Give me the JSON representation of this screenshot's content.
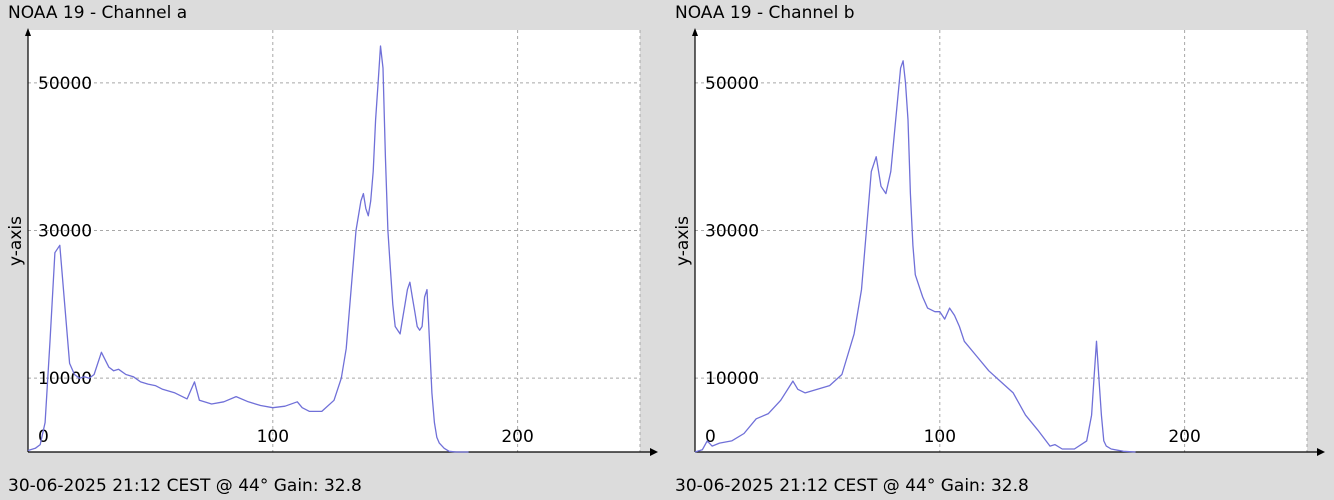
{
  "chart_data": [
    {
      "type": "line",
      "title": "NOAA 19 - Channel a",
      "footer": "30-06-2025 21:12 CEST @ 44° Gain: 32.8",
      "xlabel": "",
      "ylabel": "y-axis",
      "xlim": [
        0,
        250
      ],
      "ylim": [
        0,
        55000
      ],
      "xticks": [
        0,
        100,
        200
      ],
      "xtick_labels": [
        "0",
        "100",
        "200"
      ],
      "yticks": [
        10000,
        30000,
        50000
      ],
      "ytick_labels": [
        "10000",
        "30000",
        "50000"
      ],
      "grid": true,
      "line_color": "#7070d8",
      "series": [
        {
          "x": [
            0,
            3,
            5,
            7,
            9,
            11,
            13,
            15,
            17,
            19,
            21,
            23,
            25,
            27,
            30,
            33,
            35,
            37,
            40,
            43,
            46,
            49,
            52,
            55,
            60,
            65,
            68,
            70,
            72,
            75,
            80,
            85,
            90,
            95,
            100,
            105,
            110,
            112,
            115,
            120,
            125,
            128,
            130,
            132,
            134,
            136,
            137,
            138,
            139,
            140,
            141,
            142,
            143,
            144,
            145,
            146,
            147,
            148,
            149,
            150,
            152,
            153,
            154,
            155,
            156,
            157,
            158,
            159,
            160,
            161,
            162,
            163,
            164,
            165,
            166,
            167,
            168,
            170,
            172,
            175,
            180
          ],
          "y": [
            200,
            500,
            1000,
            4000,
            15000,
            27000,
            28000,
            20000,
            12000,
            10500,
            10000,
            10200,
            10000,
            10500,
            13500,
            11500,
            11000,
            11200,
            10500,
            10200,
            9500,
            9200,
            9000,
            8500,
            8000,
            7200,
            9500,
            7000,
            6800,
            6500,
            6800,
            7500,
            6800,
            6300,
            6000,
            6200,
            6800,
            6000,
            5500,
            5500,
            7000,
            10000,
            14000,
            22000,
            30000,
            34000,
            35000,
            33000,
            32000,
            34000,
            38000,
            45000,
            50000,
            55000,
            52000,
            40000,
            30000,
            25000,
            20000,
            17000,
            16000,
            18000,
            20000,
            22000,
            23000,
            21000,
            19000,
            17000,
            16500,
            17000,
            21000,
            22000,
            15000,
            8000,
            4000,
            2000,
            1200,
            500,
            100,
            0,
            0
          ]
        }
      ]
    },
    {
      "type": "line",
      "title": "NOAA 19 - Channel b",
      "footer": "30-06-2025 21:12 CEST @ 44° Gain: 32.8",
      "xlabel": "",
      "ylabel": "y-axis",
      "xlim": [
        0,
        250
      ],
      "ylim": [
        0,
        55000
      ],
      "xticks": [
        0,
        100,
        200
      ],
      "xtick_labels": [
        "0",
        "100",
        "200"
      ],
      "yticks": [
        10000,
        30000,
        50000
      ],
      "ytick_labels": [
        "10000",
        "30000",
        "50000"
      ],
      "grid": true,
      "line_color": "#7070d8",
      "series": [
        {
          "x": [
            0,
            3,
            5,
            7,
            10,
            15,
            20,
            25,
            30,
            35,
            40,
            42,
            45,
            50,
            55,
            60,
            65,
            68,
            70,
            72,
            74,
            76,
            78,
            80,
            82,
            84,
            85,
            86,
            87,
            88,
            89,
            90,
            92,
            93,
            95,
            98,
            100,
            102,
            104,
            106,
            108,
            110,
            115,
            120,
            125,
            130,
            135,
            140,
            145,
            147,
            150,
            155,
            160,
            162,
            163,
            164,
            165,
            166,
            167,
            168,
            170,
            175,
            180
          ],
          "y": [
            0,
            300,
            1500,
            800,
            1200,
            1500,
            2500,
            4500,
            5200,
            7000,
            9600,
            8500,
            8000,
            8500,
            9000,
            10500,
            16000,
            22000,
            30000,
            38000,
            40000,
            36000,
            35000,
            38000,
            45000,
            52000,
            53000,
            50000,
            45000,
            35000,
            28000,
            24000,
            22000,
            21000,
            19500,
            19000,
            19000,
            18000,
            19500,
            18500,
            17000,
            15000,
            13000,
            11000,
            9500,
            8000,
            5000,
            3000,
            800,
            1000,
            400,
            400,
            1500,
            5000,
            10000,
            15000,
            10000,
            5000,
            1500,
            800,
            400,
            100,
            0
          ]
        }
      ]
    }
  ]
}
